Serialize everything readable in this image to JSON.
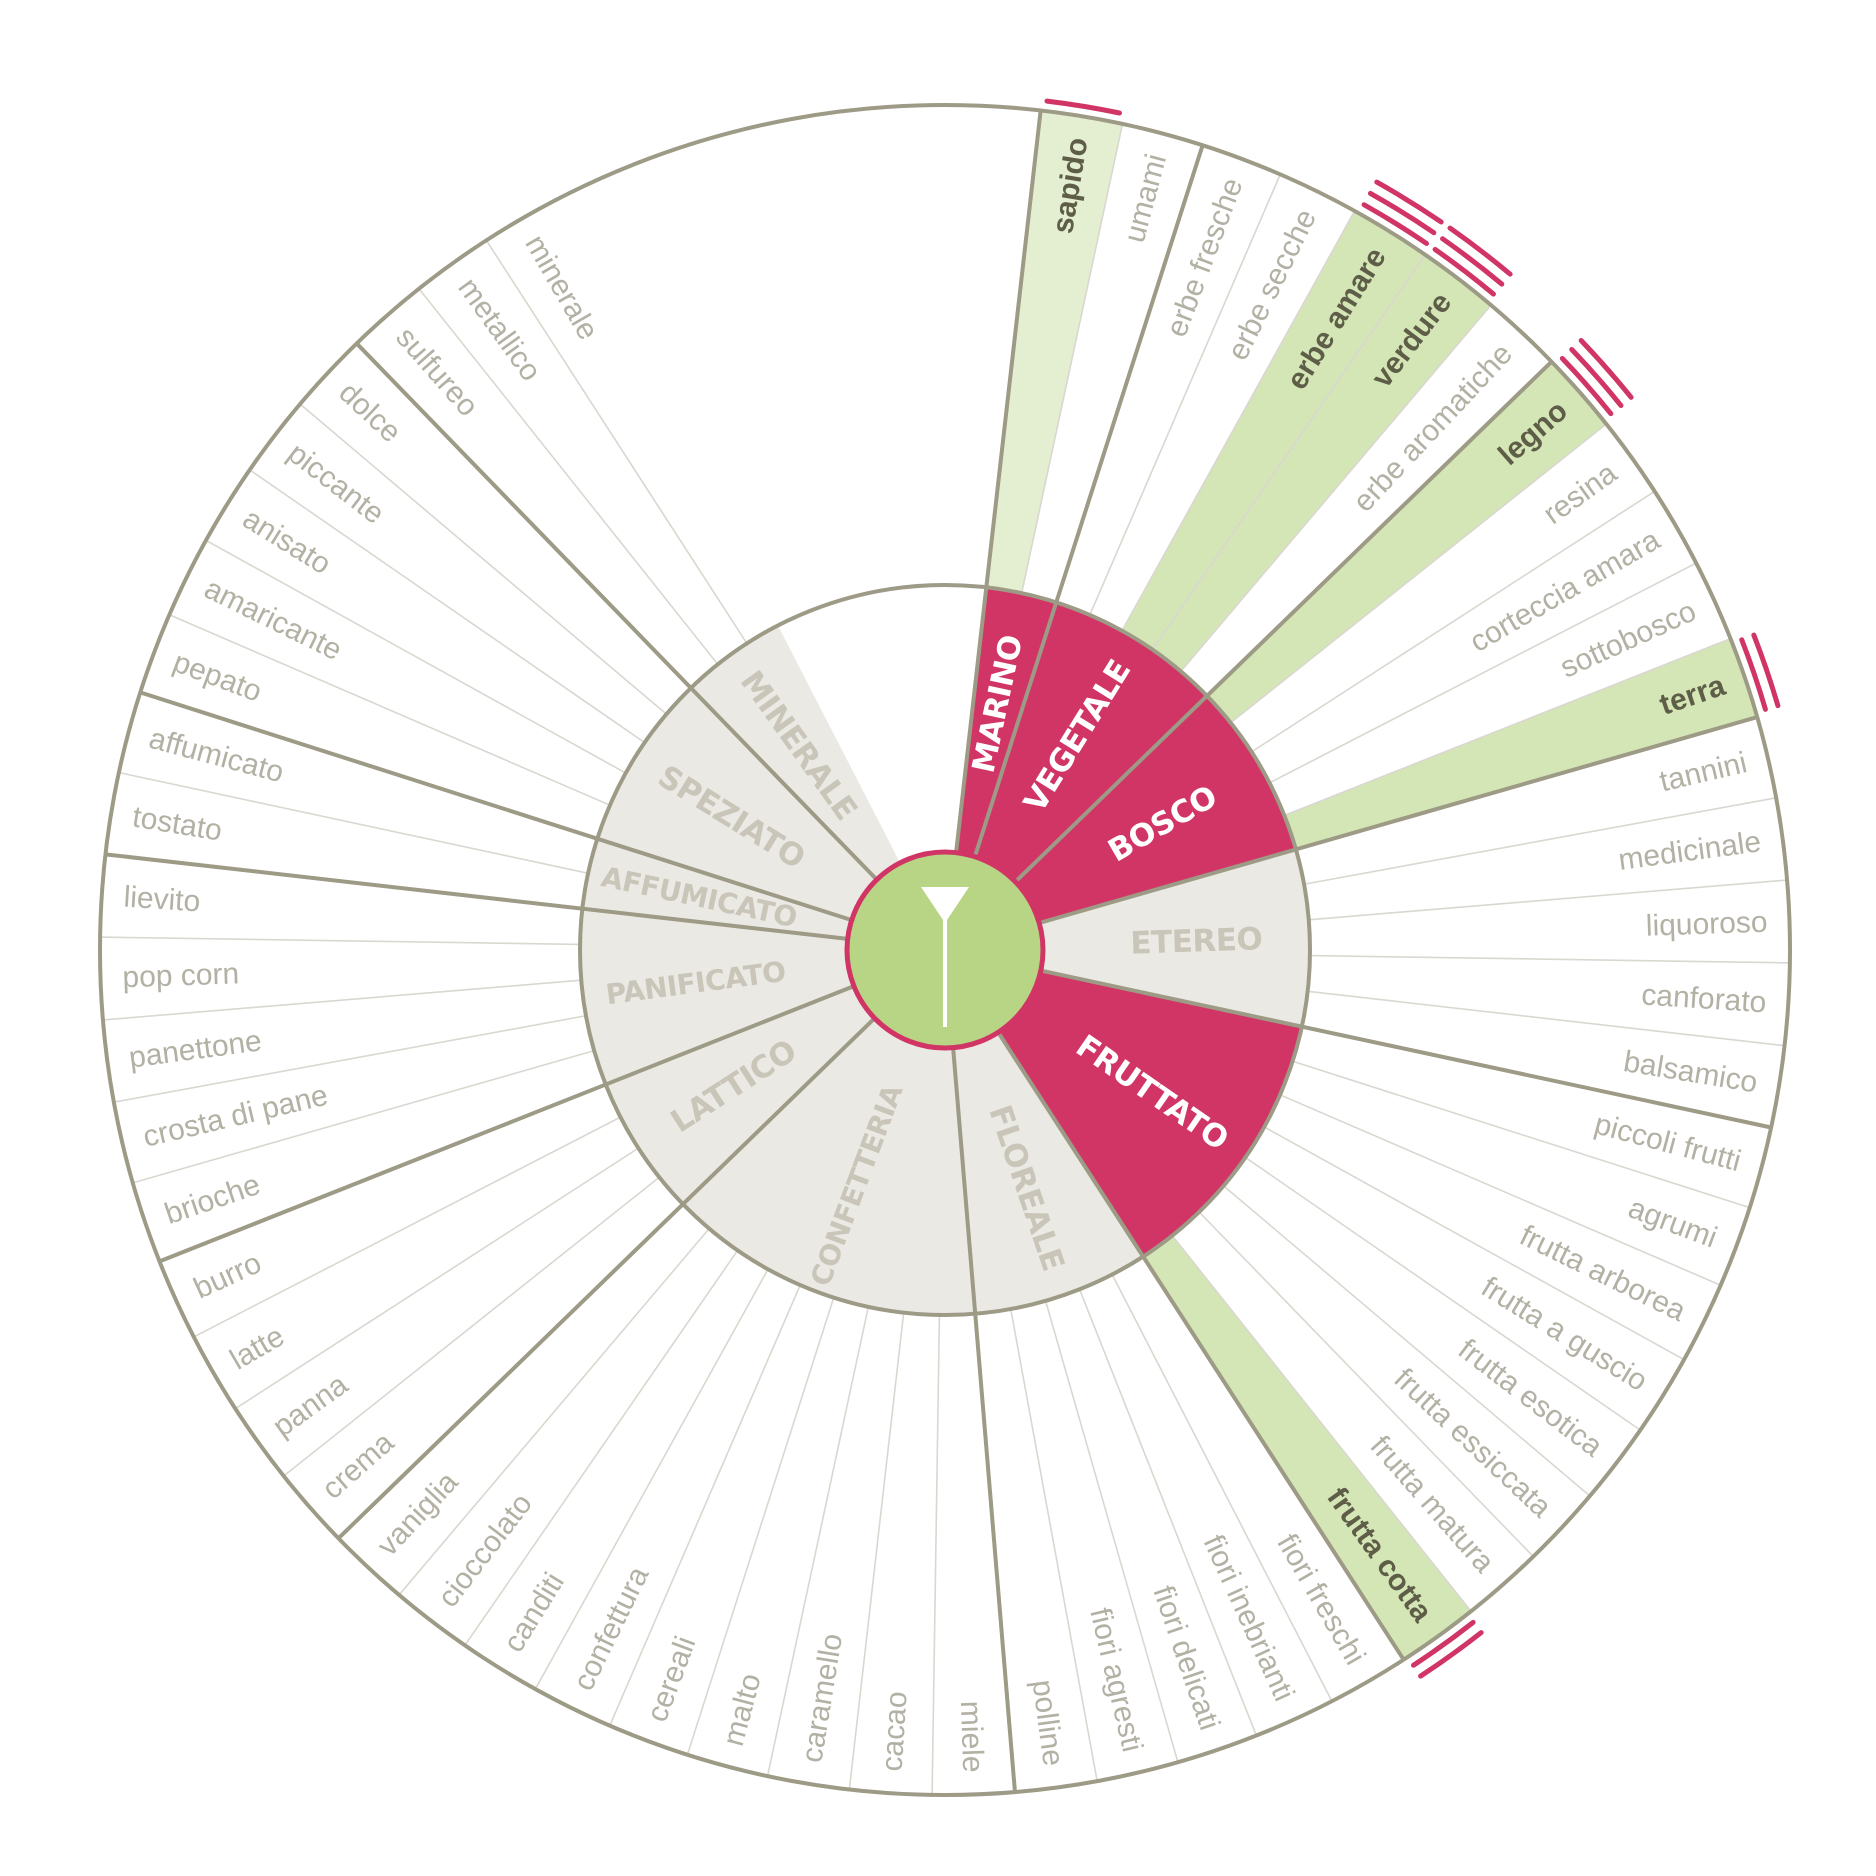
{
  "palette": {
    "background": "#ffffff",
    "ring_line": "#9d9a86",
    "inner_fill": "#ebe9e4",
    "inner_text": "#c9c5b9",
    "outer_text": "#b3b0a4",
    "outer_text_selected": "#5e5d48",
    "selected_category_fill": "#d13566",
    "selected_category_text": "#ffffff",
    "selected_descriptor_fill": "#d4e6b6",
    "selected_descriptor_fill_light": "#e4efd2",
    "center_fill": "#b7d584",
    "center_stroke": "#d13566",
    "glass_icon": "#ffffff",
    "intensity_mark": "#d13566"
  },
  "center": {
    "icon": "wine-glass-icon"
  },
  "categories": [
    {
      "name": "MARINO",
      "selected": true,
      "descriptors": [
        {
          "label": "sapido",
          "selected": true,
          "intensity": 1,
          "shade": "light"
        },
        {
          "label": "umami",
          "selected": false
        }
      ]
    },
    {
      "name": "VEGETALE",
      "selected": true,
      "descriptors": [
        {
          "label": "erbe fresche",
          "selected": false
        },
        {
          "label": "erbe secche",
          "selected": false
        },
        {
          "label": "erbe amare",
          "selected": true,
          "intensity": 3
        },
        {
          "label": "verdure",
          "selected": true,
          "intensity": 3
        },
        {
          "label": "erbe aromatiche",
          "selected": false
        }
      ]
    },
    {
      "name": "BOSCO",
      "selected": true,
      "descriptors": [
        {
          "label": "legno",
          "selected": true,
          "intensity": 3
        },
        {
          "label": "resina",
          "selected": false
        },
        {
          "label": "corteccia amara",
          "selected": false
        },
        {
          "label": "sottobosco",
          "selected": false
        },
        {
          "label": "terra",
          "selected": true,
          "intensity": 2
        }
      ]
    },
    {
      "name": "ETEREO",
      "selected": false,
      "descriptors": [
        {
          "label": "tannini",
          "selected": false
        },
        {
          "label": "medicinale",
          "selected": false
        },
        {
          "label": "liquoroso",
          "selected": false
        },
        {
          "label": "canforato",
          "selected": false
        },
        {
          "label": "balsamico",
          "selected": false
        }
      ]
    },
    {
      "name": "FRUTTATO",
      "selected": true,
      "descriptors": [
        {
          "label": "piccoli frutti",
          "selected": false
        },
        {
          "label": "agrumi",
          "selected": false
        },
        {
          "label": "frutta arborea",
          "selected": false
        },
        {
          "label": "frutta a guscio",
          "selected": false
        },
        {
          "label": "frutta esotica",
          "selected": false
        },
        {
          "label": "frutta essiccata",
          "selected": false
        },
        {
          "label": "frutta matura",
          "selected": false
        },
        {
          "label": "frutta cotta",
          "selected": true,
          "intensity": 2
        }
      ]
    },
    {
      "name": "FLOREALE",
      "selected": false,
      "descriptors": [
        {
          "label": "fiori freschi",
          "selected": false
        },
        {
          "label": "fiori inebrianti",
          "selected": false
        },
        {
          "label": "fiori delicati",
          "selected": false
        },
        {
          "label": "fiori agresti",
          "selected": false
        },
        {
          "label": "polline",
          "selected": false
        }
      ]
    },
    {
      "name": "CONFETTERIA",
      "selected": false,
      "descriptors": [
        {
          "label": "miele",
          "selected": false
        },
        {
          "label": "cacao",
          "selected": false
        },
        {
          "label": "caramello",
          "selected": false
        },
        {
          "label": "malto",
          "selected": false
        },
        {
          "label": "cereali",
          "selected": false
        },
        {
          "label": "confettura",
          "selected": false
        },
        {
          "label": "canditi",
          "selected": false
        },
        {
          "label": "cioccolato",
          "selected": false
        },
        {
          "label": "vaniglia",
          "selected": false
        }
      ]
    },
    {
      "name": "LATTICO",
      "selected": false,
      "descriptors": [
        {
          "label": "crema",
          "selected": false
        },
        {
          "label": "panna",
          "selected": false
        },
        {
          "label": "latte",
          "selected": false
        },
        {
          "label": "burro",
          "selected": false
        }
      ]
    },
    {
      "name": "PANIFICATO",
      "selected": false,
      "descriptors": [
        {
          "label": "brioche",
          "selected": false
        },
        {
          "label": "crosta di pane",
          "selected": false
        },
        {
          "label": "panettone",
          "selected": false
        },
        {
          "label": "pop corn",
          "selected": false
        },
        {
          "label": "lievito",
          "selected": false
        }
      ]
    },
    {
      "name": "AFFUMICATO",
      "selected": false,
      "descriptors": [
        {
          "label": "tostato",
          "selected": false
        },
        {
          "label": "affumicato",
          "selected": false
        }
      ]
    },
    {
      "name": "SPEZIATO",
      "selected": false,
      "descriptors": [
        {
          "label": "pepato",
          "selected": false
        },
        {
          "label": "amaricante",
          "selected": false
        },
        {
          "label": "anisato",
          "selected": false
        },
        {
          "label": "piccante",
          "selected": false
        },
        {
          "label": "dolce",
          "selected": false
        }
      ]
    },
    {
      "name": "MINERALE",
      "selected": false,
      "descriptors": [
        {
          "label": "sulfureo",
          "selected": false
        },
        {
          "label": "metallico",
          "selected": false
        },
        {
          "label": "minerale",
          "selected": false
        }
      ]
    }
  ]
}
